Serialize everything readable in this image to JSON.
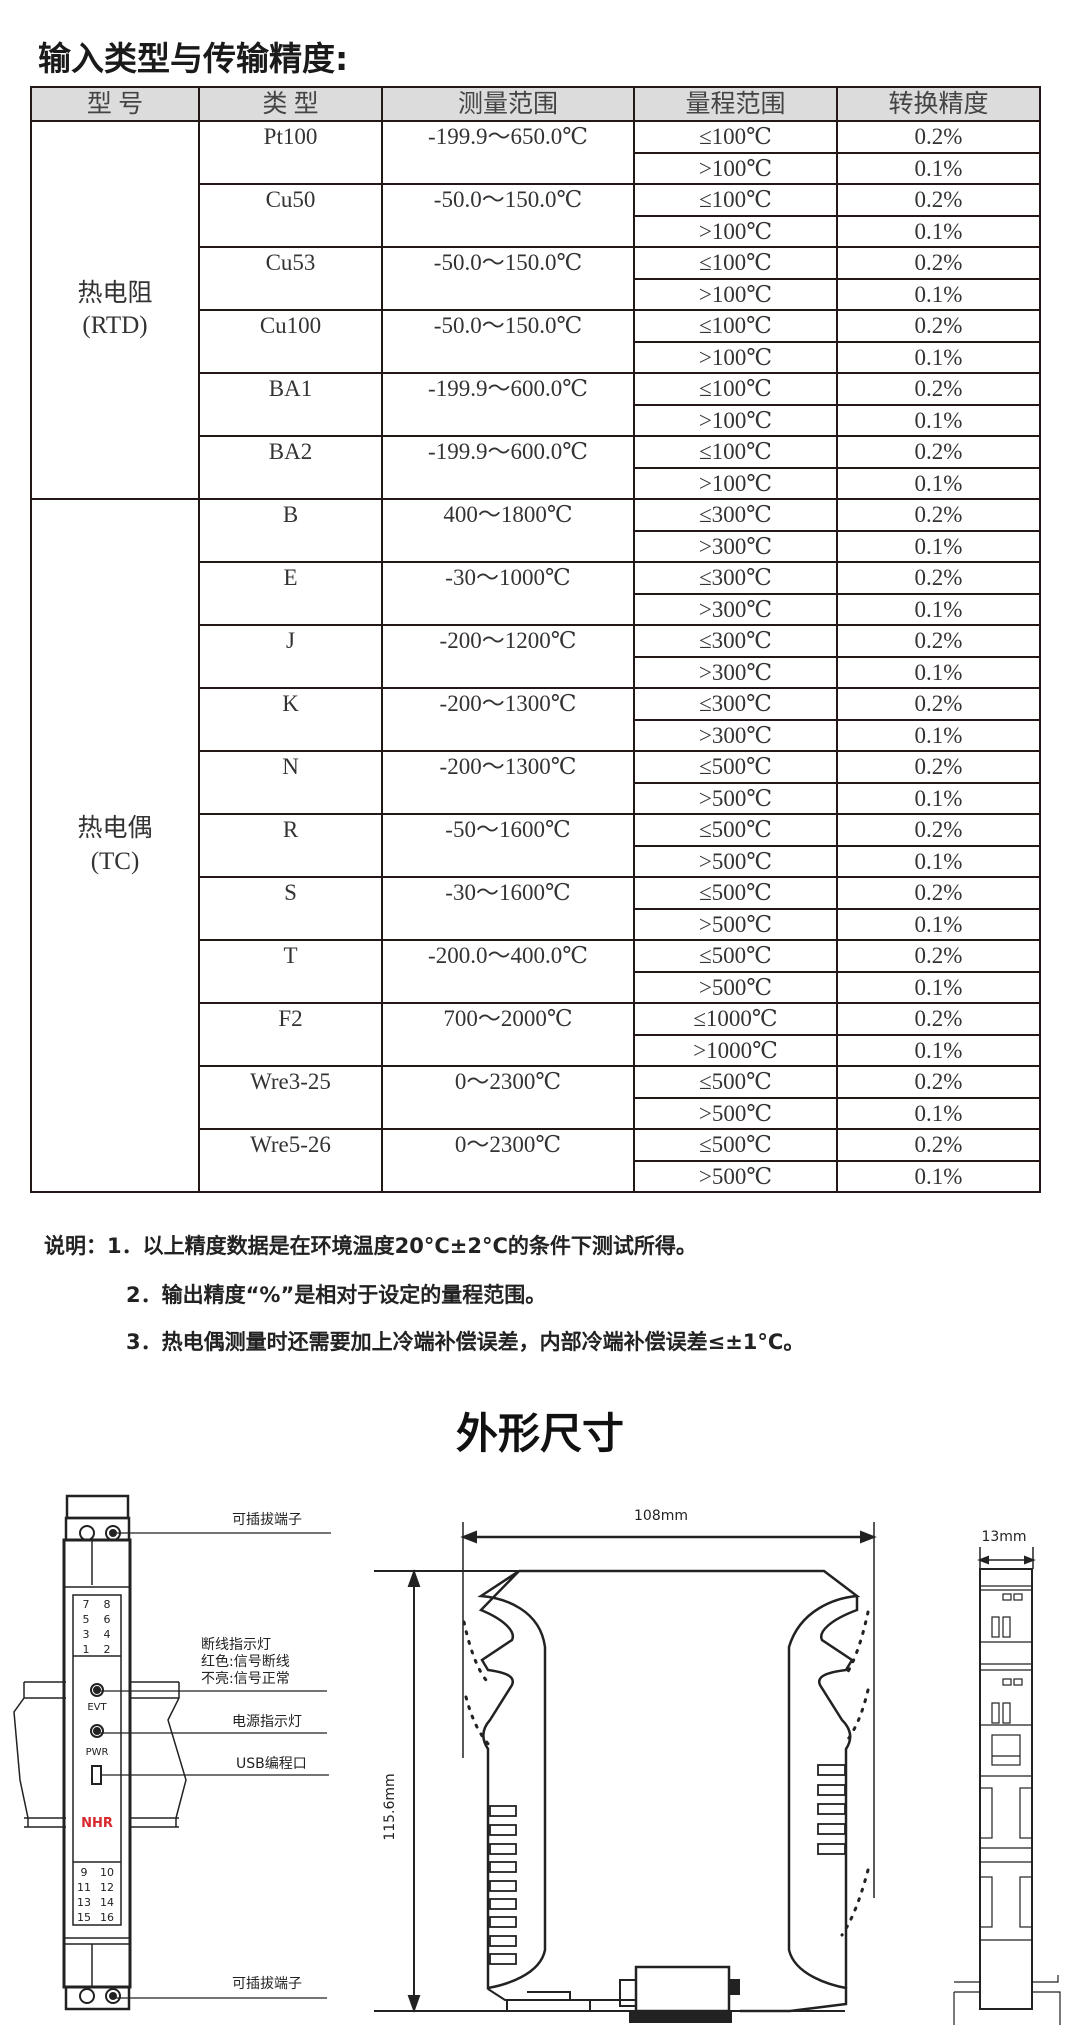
{
  "title": "输入类型与传输精度:",
  "table": {
    "headers": [
      "型 号",
      "类 型",
      "测量范围",
      "量程范围",
      "转换精度"
    ],
    "groups": [
      {
        "model": "热电阻",
        "model_sub": "(RTD)",
        "types": [
          {
            "type": "Pt100",
            "range": "-199.9～650.0℃",
            "rows": [
              {
                "span": "≤100℃",
                "accuracy": "0.2%"
              },
              {
                "span": ">100℃",
                "accuracy": "0.1%"
              }
            ]
          },
          {
            "type": "Cu50",
            "range": "-50.0～150.0℃",
            "rows": [
              {
                "span": "≤100℃",
                "accuracy": "0.2%"
              },
              {
                "span": ">100℃",
                "accuracy": "0.1%"
              }
            ]
          },
          {
            "type": "Cu53",
            "range": "-50.0～150.0℃",
            "rows": [
              {
                "span": "≤100℃",
                "accuracy": "0.2%"
              },
              {
                "span": ">100℃",
                "accuracy": "0.1%"
              }
            ]
          },
          {
            "type": "Cu100",
            "range": "-50.0～150.0℃",
            "rows": [
              {
                "span": "≤100℃",
                "accuracy": "0.2%"
              },
              {
                "span": ">100℃",
                "accuracy": "0.1%"
              }
            ]
          },
          {
            "type": "BA1",
            "range": "-199.9～600.0℃",
            "rows": [
              {
                "span": "≤100℃",
                "accuracy": "0.2%"
              },
              {
                "span": ">100℃",
                "accuracy": "0.1%"
              }
            ]
          },
          {
            "type": "BA2",
            "range": "-199.9～600.0℃",
            "rows": [
              {
                "span": "≤100℃",
                "accuracy": "0.2%"
              },
              {
                "span": ">100℃",
                "accuracy": "0.1%"
              }
            ]
          }
        ]
      },
      {
        "model": "热电偶",
        "model_sub": "(TC)",
        "types": [
          {
            "type": "B",
            "range": "400～1800℃",
            "rows": [
              {
                "span": "≤300℃",
                "accuracy": "0.2%"
              },
              {
                "span": ">300℃",
                "accuracy": "0.1%"
              }
            ]
          },
          {
            "type": "E",
            "range": "-30～1000℃",
            "rows": [
              {
                "span": "≤300℃",
                "accuracy": "0.2%"
              },
              {
                "span": ">300℃",
                "accuracy": "0.1%"
              }
            ]
          },
          {
            "type": "J",
            "range": "-200～1200℃",
            "rows": [
              {
                "span": "≤300℃",
                "accuracy": "0.2%"
              },
              {
                "span": ">300℃",
                "accuracy": "0.1%"
              }
            ]
          },
          {
            "type": "K",
            "range": "-200～1300℃",
            "rows": [
              {
                "span": "≤300℃",
                "accuracy": "0.2%"
              },
              {
                "span": ">300℃",
                "accuracy": "0.1%"
              }
            ]
          },
          {
            "type": "N",
            "range": "-200～1300℃",
            "rows": [
              {
                "span": "≤500℃",
                "accuracy": "0.2%"
              },
              {
                "span": ">500℃",
                "accuracy": "0.1%"
              }
            ]
          },
          {
            "type": "R",
            "range": "-50～1600℃",
            "rows": [
              {
                "span": "≤500℃",
                "accuracy": "0.2%"
              },
              {
                "span": ">500℃",
                "accuracy": "0.1%"
              }
            ]
          },
          {
            "type": "S",
            "range": "-30～1600℃",
            "rows": [
              {
                "span": "≤500℃",
                "accuracy": "0.2%"
              },
              {
                "span": ">500℃",
                "accuracy": "0.1%"
              }
            ]
          },
          {
            "type": "T",
            "range": "-200.0～400.0℃",
            "rows": [
              {
                "span": "≤500℃",
                "accuracy": "0.2%"
              },
              {
                "span": ">500℃",
                "accuracy": "0.1%"
              }
            ]
          },
          {
            "type": "F2",
            "range": "700～2000℃",
            "rows": [
              {
                "span": "≤1000℃",
                "accuracy": "0.2%"
              },
              {
                "span": ">1000℃",
                "accuracy": "0.1%"
              }
            ]
          },
          {
            "type": "Wre3-25",
            "range": "0～2300℃",
            "rows": [
              {
                "span": "≤500℃",
                "accuracy": "0.2%"
              },
              {
                "span": ">500℃",
                "accuracy": "0.1%"
              }
            ]
          },
          {
            "type": "Wre5-26",
            "range": "0～2300℃",
            "rows": [
              {
                "span": "≤500℃",
                "accuracy": "0.2%"
              },
              {
                "span": ">500℃",
                "accuracy": "0.1%"
              }
            ]
          }
        ]
      }
    ]
  },
  "notes": [
    "说明：1．以上精度数据是在环境温度20°C±2°C的条件下测试所得。",
    "2．输出精度“%”是相对于设定的量程范围。",
    "3．热电偶测量时还需要加上冷端补偿误差，内部冷端补偿误差≤±1°C。"
  ],
  "dimensions_title": "外形尺寸",
  "diagram": {
    "front": {
      "terminal_label_top": "可插拔端子",
      "terminal_label_bottom": "可插拔端子",
      "break_led_label": "断线指示灯",
      "break_led_red": "红色:信号断线",
      "break_led_off": "不亮:信号正常",
      "power_led_label": "电源指示灯",
      "usb_label": "USB编程口",
      "evt": "EVT",
      "pwr": "PWR",
      "logo": "NHR",
      "top_terminals": [
        [
          "7",
          "8"
        ],
        [
          "5",
          "6"
        ],
        [
          "3",
          "4"
        ],
        [
          "1",
          "2"
        ]
      ],
      "bottom_terminals": [
        [
          "9",
          "10"
        ],
        [
          "11",
          "12"
        ],
        [
          "13",
          "14"
        ],
        [
          "15",
          "16"
        ]
      ]
    },
    "side": {
      "width_label": "108mm",
      "height_label": "115.6mm"
    },
    "end": {
      "width_label": "13mm"
    }
  },
  "colors": {
    "header_bg": "#dcdcdc",
    "border": "#231815",
    "logo_red": "#d7282f"
  }
}
